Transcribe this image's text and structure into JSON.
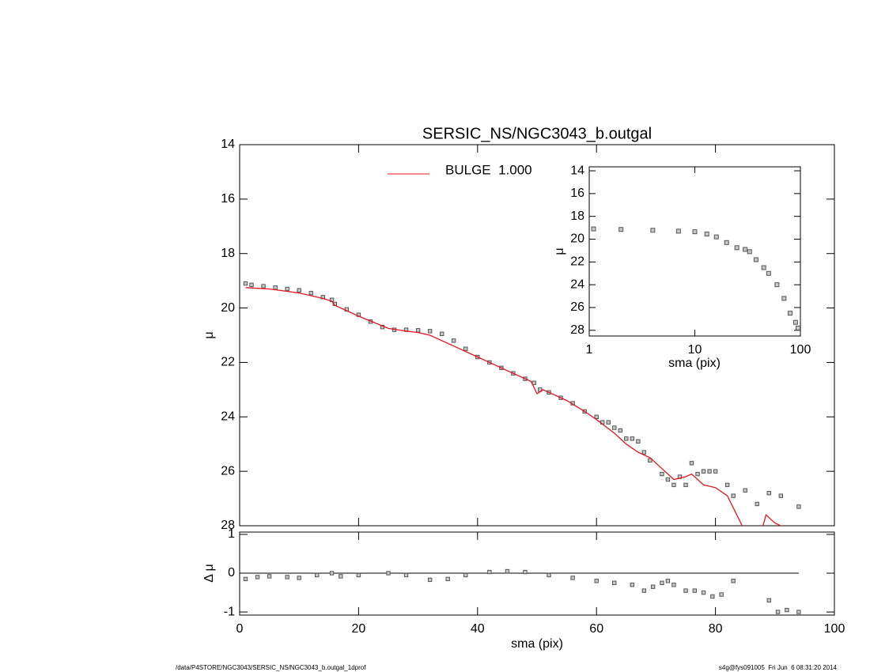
{
  "chart_data": [
    {
      "type": "scatter",
      "title": "SERSIC_NS/NGC3043_b.outgal",
      "y_label": "μ",
      "xlim": [
        0,
        100
      ],
      "xticks": [
        0,
        20,
        40,
        60,
        80,
        100
      ],
      "ylim": [
        14,
        28
      ],
      "y_inverted": true,
      "yticks": [
        14,
        16,
        18,
        20,
        22,
        24,
        26,
        28
      ],
      "series": [
        {
          "type": "markers",
          "color": "#555555",
          "x": [
            1,
            2,
            4,
            6,
            8,
            10,
            12,
            14,
            15.5,
            16,
            18,
            20,
            22,
            24,
            26,
            28,
            30,
            32,
            34,
            36,
            38,
            40,
            42,
            44,
            46,
            48,
            49.5,
            50.5,
            52,
            54,
            56,
            58,
            60,
            61,
            62,
            63,
            64,
            65,
            66,
            67,
            68,
            69,
            71,
            72,
            73,
            74,
            75,
            76,
            77,
            78,
            79,
            80,
            82,
            83,
            85,
            87,
            89,
            91,
            94
          ],
          "values": [
            19.1,
            19.15,
            19.2,
            19.25,
            19.3,
            19.35,
            19.45,
            19.6,
            19.7,
            19.85,
            20.05,
            20.25,
            20.5,
            20.7,
            20.8,
            20.8,
            20.82,
            20.85,
            20.95,
            21.2,
            21.5,
            21.8,
            22.0,
            22.2,
            22.4,
            22.6,
            22.75,
            23.0,
            23.1,
            23.3,
            23.5,
            23.8,
            24.0,
            24.2,
            24.2,
            24.4,
            24.5,
            24.8,
            24.8,
            24.9,
            25.3,
            25.6,
            26.1,
            26.3,
            26.5,
            26.2,
            26.5,
            25.7,
            26.1,
            26.0,
            26.0,
            26.0,
            26.5,
            26.9,
            26.7,
            27.2,
            26.8,
            26.9,
            27.3
          ]
        },
        {
          "type": "line",
          "name": "BULGE  1.000",
          "color": "#e8141e",
          "x": [
            1,
            5,
            10,
            14,
            15.5,
            16,
            20,
            25,
            28,
            30,
            32,
            35,
            40,
            45,
            49,
            50,
            51,
            52,
            55,
            58,
            60,
            63,
            65,
            67,
            69,
            71,
            73,
            75,
            76,
            78,
            80,
            82,
            84.5,
            85.5,
            87.5,
            88.5,
            90,
            92
          ],
          "values": [
            19.25,
            19.3,
            19.45,
            19.65,
            19.75,
            19.9,
            20.3,
            20.75,
            20.85,
            20.9,
            21.0,
            21.3,
            21.8,
            22.3,
            22.7,
            23.15,
            23.0,
            23.1,
            23.4,
            23.8,
            24.1,
            24.6,
            25.0,
            25.3,
            25.5,
            25.9,
            26.3,
            26.2,
            26.1,
            26.5,
            26.6,
            26.9,
            28.0,
            28.6,
            28.4,
            27.6,
            27.9,
            28.1
          ]
        }
      ]
    },
    {
      "type": "scatter",
      "x_label": "sma (pix)",
      "y_label": "Δ μ",
      "xlim": [
        0,
        100
      ],
      "xticks": [
        0,
        20,
        40,
        60,
        80,
        100
      ],
      "ylim": [
        -1.08,
        1.06
      ],
      "yticks": [
        -1,
        0,
        1
      ],
      "series": [
        {
          "type": "markers",
          "color": "#555555",
          "x": [
            1,
            3,
            5,
            8,
            10,
            13,
            15.5,
            17,
            20,
            25,
            28,
            32,
            35,
            38,
            42,
            45,
            48,
            52,
            56,
            60,
            63,
            66,
            68,
            69.5,
            71,
            72,
            73,
            75,
            76.5,
            78,
            79.5,
            81,
            83,
            89,
            90.5,
            92,
            94
          ],
          "values": [
            -0.15,
            -0.1,
            -0.08,
            -0.1,
            -0.12,
            -0.05,
            0.0,
            -0.08,
            -0.05,
            0.0,
            -0.05,
            -0.17,
            -0.15,
            -0.05,
            0.03,
            0.05,
            0.03,
            -0.05,
            -0.12,
            -0.2,
            -0.25,
            -0.3,
            -0.45,
            -0.35,
            -0.25,
            -0.2,
            -0.3,
            -0.45,
            -0.45,
            -0.5,
            -0.6,
            -0.55,
            -0.2,
            -0.7,
            -1.0,
            -0.95,
            -1.0
          ]
        }
      ]
    },
    {
      "type": "scatter",
      "x_label": "sma (pix)",
      "y_label": "μ",
      "x_log": true,
      "xlim": [
        1,
        100
      ],
      "xticks": [
        1,
        10,
        100
      ],
      "ylim": [
        13.65,
        28.5
      ],
      "y_inverted": true,
      "yticks": [
        14,
        16,
        18,
        20,
        22,
        24,
        26,
        28
      ],
      "series": [
        {
          "type": "markers",
          "color": "#555555",
          "x": [
            1.1,
            2,
            4,
            7,
            10,
            13,
            16,
            20,
            25,
            30,
            33,
            38,
            45,
            50,
            60,
            70,
            80,
            90,
            95
          ],
          "values": [
            19.1,
            19.15,
            19.22,
            19.3,
            19.35,
            19.55,
            19.8,
            20.3,
            20.75,
            20.9,
            21.1,
            21.8,
            22.5,
            23.0,
            24.0,
            25.2,
            26.5,
            27.3,
            27.8
          ]
        }
      ]
    }
  ],
  "footer": {
    "left": "/data/P4STORE/NGC3043/SERSIC_NS/NGC3043_b.outgal_1dprof",
    "right": "s4g@fys091005  Fri Jun  6 08:31:20 2014"
  }
}
